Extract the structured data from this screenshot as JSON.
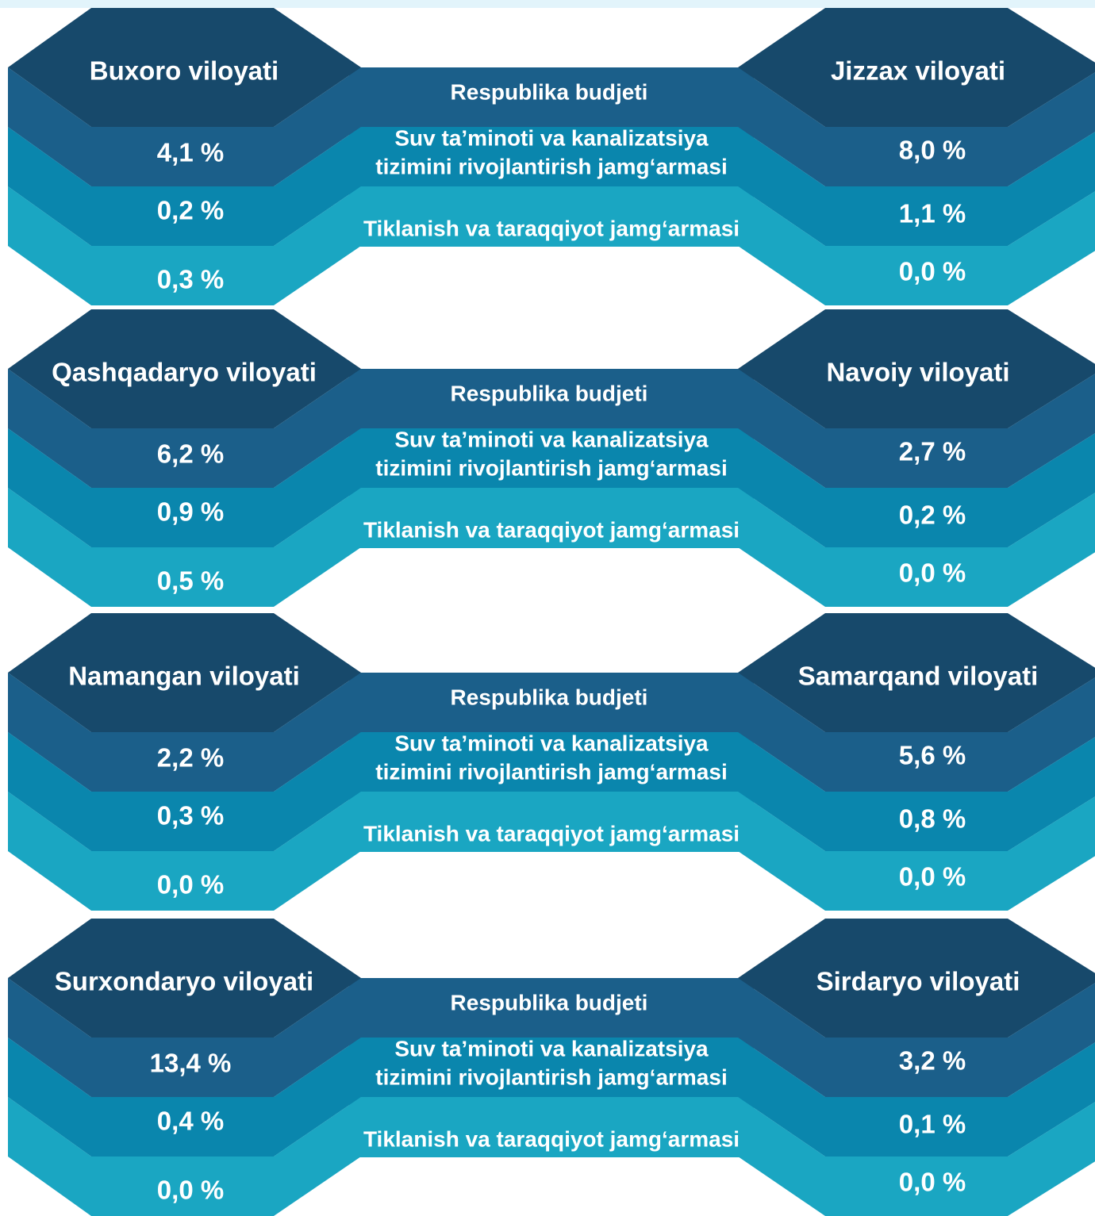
{
  "blocks": [
    {
      "left": {
        "name": "Buxoro viloyati",
        "values": [
          "4,1 %",
          "0,2 %",
          "0,3 %"
        ]
      },
      "right": {
        "name": "Jizzax viloyati",
        "values": [
          "8,0 %",
          "1,1 %",
          "0,0 %"
        ]
      },
      "middle": {
        "first": "Respublika budjeti",
        "second": [
          "Suv ta’minoti va kanalizatsiya",
          "tizimini rivojlantirish jamg‘armasi"
        ],
        "third": "Tiklanish va taraqqiyot jamg‘armasi"
      }
    },
    {
      "left": {
        "name": "Qashqadaryo viloyati",
        "values": [
          "6,2 %",
          "0,9 %",
          "0,5 %"
        ]
      },
      "right": {
        "name": "Navoiy viloyati",
        "values": [
          "2,7 %",
          "0,2 %",
          "0,0 %"
        ]
      },
      "middle": {
        "first": "Respublika budjeti",
        "second": [
          "Suv ta’minoti va kanalizatsiya",
          "tizimini rivojlantirish jamg‘armasi"
        ],
        "third": "Tiklanish va taraqqiyot jamg‘armasi"
      }
    },
    {
      "left": {
        "name": "Namangan viloyati",
        "values": [
          "2,2 %",
          "0,3 %",
          "0,0 %"
        ]
      },
      "right": {
        "name": "Samarqand viloyati",
        "values": [
          "5,6 %",
          "0,8 %",
          "0,0 %"
        ]
      },
      "middle": {
        "first": "Respublika budjeti",
        "second": [
          "Suv ta’minoti va kanalizatsiya",
          "tizimini rivojlantirish jamg‘armasi"
        ],
        "third": "Tiklanish va taraqqiyot jamg‘armasi"
      }
    },
    {
      "left": {
        "name": "Surxondaryo viloyati",
        "values": [
          "13,4 %",
          "0,4 %",
          "0,0 %"
        ]
      },
      "right": {
        "name": "Sirdaryo viloyati",
        "values": [
          "3,2 %",
          "0,1 %",
          "0,0 %"
        ]
      },
      "middle": {
        "first": "Respublika budjeti",
        "second": [
          "Suv ta’minoti va kanalizatsiya",
          "tizimini rivojlantirish jamg‘armasi"
        ],
        "third": "Tiklanish va taraqqiyot jamg‘armasi"
      }
    }
  ]
}
